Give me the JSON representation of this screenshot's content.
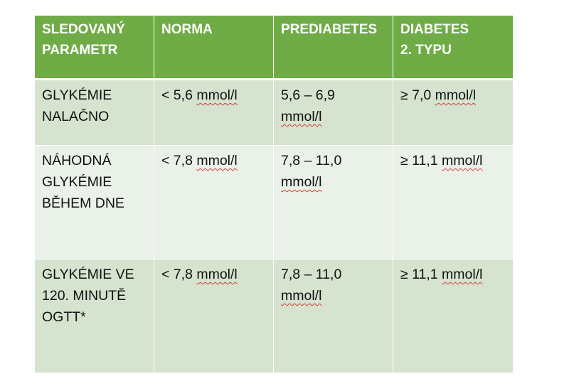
{
  "headers": [
    "SLEDOVANÝ\nPARAMETR",
    "NORMA",
    "PREDIABETES",
    "DIABETES\n2. TYPU"
  ],
  "rows": [
    {
      "parameter": "GLYKÉMIE\nNALAČNO",
      "norma": {
        "value": "< 5,6 ",
        "unit": "mmol/l"
      },
      "prediabetes": {
        "value": "5,6 – 6,9\n",
        "unit": "mmol/l"
      },
      "diabetes": {
        "value": "≥ 7,0 ",
        "unit": "mmol/l"
      }
    },
    {
      "parameter": "NÁHODNÁ\nGLYKÉMIE\nBĚHEM DNE",
      "norma": {
        "value": "< 7,8 ",
        "unit": "mmol/l"
      },
      "prediabetes": {
        "value": "7,8 – 11,0\n",
        "unit": "mmol/l"
      },
      "diabetes": {
        "value": "≥ 11,1 ",
        "unit": "mmol/l"
      }
    },
    {
      "parameter": "GLYKÉMIE VE\n120. MINUTĚ\nOGTT*",
      "norma": {
        "value": "< 7,8 ",
        "unit": "mmol/l"
      },
      "prediabetes": {
        "value": "7,8 – 11,0\n",
        "unit": "mmol/l"
      },
      "diabetes": {
        "value": "≥ 11,1 ",
        "unit": "mmol/l"
      }
    }
  ],
  "colors": {
    "header_bg": "#6fac46",
    "row_dark": "#d5e3cf",
    "row_light": "#eaf1e8",
    "header_text": "#ffffff"
  }
}
